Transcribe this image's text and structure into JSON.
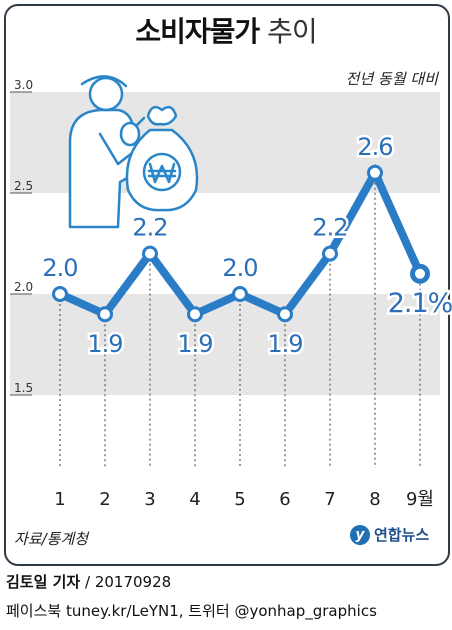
{
  "title_bold": "소비자물가",
  "title_light": "추이",
  "subtitle": "전년 동월 대비",
  "source": "자료/통계청",
  "logo_text": "연합뉴스",
  "credit_author": "김토일 기자",
  "credit_date": "/ 20170928",
  "credit_social": "페이스북 tuney.kr/LeYN1, 트위터 @yonhap_graphics",
  "colors": {
    "line": "#2a7cc7",
    "band": "#e6e6e6",
    "frame": "#2f3b46",
    "illustration": "#2a86c9"
  },
  "chart_data": {
    "type": "line",
    "x": [
      "1",
      "2",
      "3",
      "4",
      "5",
      "6",
      "7",
      "8",
      "9월"
    ],
    "values": [
      2.0,
      1.9,
      2.2,
      1.9,
      2.0,
      1.9,
      2.2,
      2.6,
      2.1
    ],
    "data_labels": [
      "2.0",
      "1.9",
      "2.2",
      "1.9",
      "2.0",
      "1.9",
      "2.2",
      "2.6",
      "2.1%"
    ],
    "yticks": [
      "3.0",
      "2.5",
      "2.0",
      "1.5"
    ],
    "ylim": [
      1.5,
      3.0
    ],
    "grid": true
  }
}
